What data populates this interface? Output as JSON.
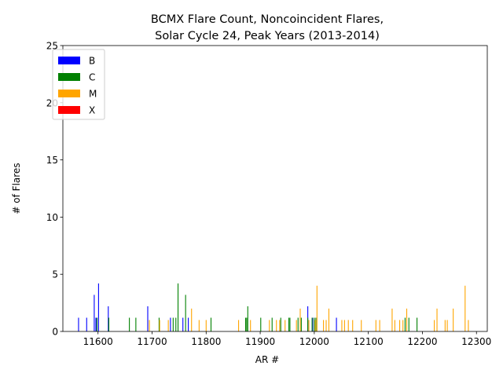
{
  "chart_data": {
    "type": "bar",
    "title_lines": [
      "BCMX Flare Count, Noncoincident Flares,",
      "Solar Cycle 24, Peak Years (2013-2014)"
    ],
    "xlabel": "AR #",
    "ylabel": "# of Flares",
    "xlim": [
      11535,
      12320
    ],
    "ylim": [
      0,
      25
    ],
    "xticks": [
      11600,
      11700,
      11800,
      11900,
      12000,
      12100,
      12200,
      12300
    ],
    "yticks": [
      0,
      5,
      10,
      15,
      20,
      25
    ],
    "legend_position": "top-left",
    "grid": false,
    "series": [
      {
        "name": "B",
        "color": "#0000ff",
        "x": [
          11564,
          11579,
          11593,
          11596,
          11598,
          11601,
          11619,
          11692,
          11734,
          11757,
          11767,
          11988,
          11997,
          12041
        ],
        "values": [
          1.2,
          1.2,
          3.2,
          1.2,
          1.2,
          4.2,
          2.2,
          2.2,
          1.2,
          1.2,
          1.2,
          2.2,
          1.2,
          1.2
        ]
      },
      {
        "name": "C",
        "color": "#008000",
        "x": [
          11598,
          11620,
          11658,
          11670,
          11713,
          11739,
          11744,
          11748,
          11762,
          11809,
          11873,
          11875,
          11877,
          11901,
          11922,
          11938,
          11953,
          11955,
          11970,
          11976,
          11988,
          11996,
          12000,
          12003,
          12168,
          12175,
          12190
        ],
        "values": [
          1.2,
          1.2,
          1.2,
          1.2,
          1.2,
          1.2,
          1.2,
          4.2,
          3.2,
          1.2,
          1.2,
          1.2,
          2.2,
          1.2,
          1.2,
          1.2,
          1.2,
          1.2,
          1.2,
          1.2,
          1.2,
          1.2,
          1.2,
          1.2,
          1.2,
          1.2,
          1.2
        ]
      },
      {
        "name": "M",
        "color": "#ffa500",
        "x": [
          11695,
          11714,
          11730,
          11773,
          11787,
          11800,
          11860,
          11882,
          11917,
          11930,
          11936,
          11946,
          11967,
          11974,
          11990,
          12002,
          12005,
          12017,
          12022,
          12027,
          12051,
          12056,
          12063,
          12071,
          12087,
          12114,
          12121,
          12144,
          12149,
          12158,
          12164,
          12171,
          12222,
          12227,
          12242,
          12246,
          12257,
          12279,
          12285
        ],
        "values": [
          1,
          1,
          1,
          2,
          1,
          1,
          1,
          1,
          1,
          1,
          1,
          1,
          1,
          2,
          1,
          1,
          4,
          1,
          1,
          2,
          1,
          1,
          1,
          1,
          1,
          1,
          1,
          2,
          1,
          1,
          1,
          2,
          1,
          2,
          1,
          1,
          2,
          4,
          1
        ]
      },
      {
        "name": "X",
        "color": "#ff0000",
        "x": [],
        "values": []
      }
    ]
  }
}
